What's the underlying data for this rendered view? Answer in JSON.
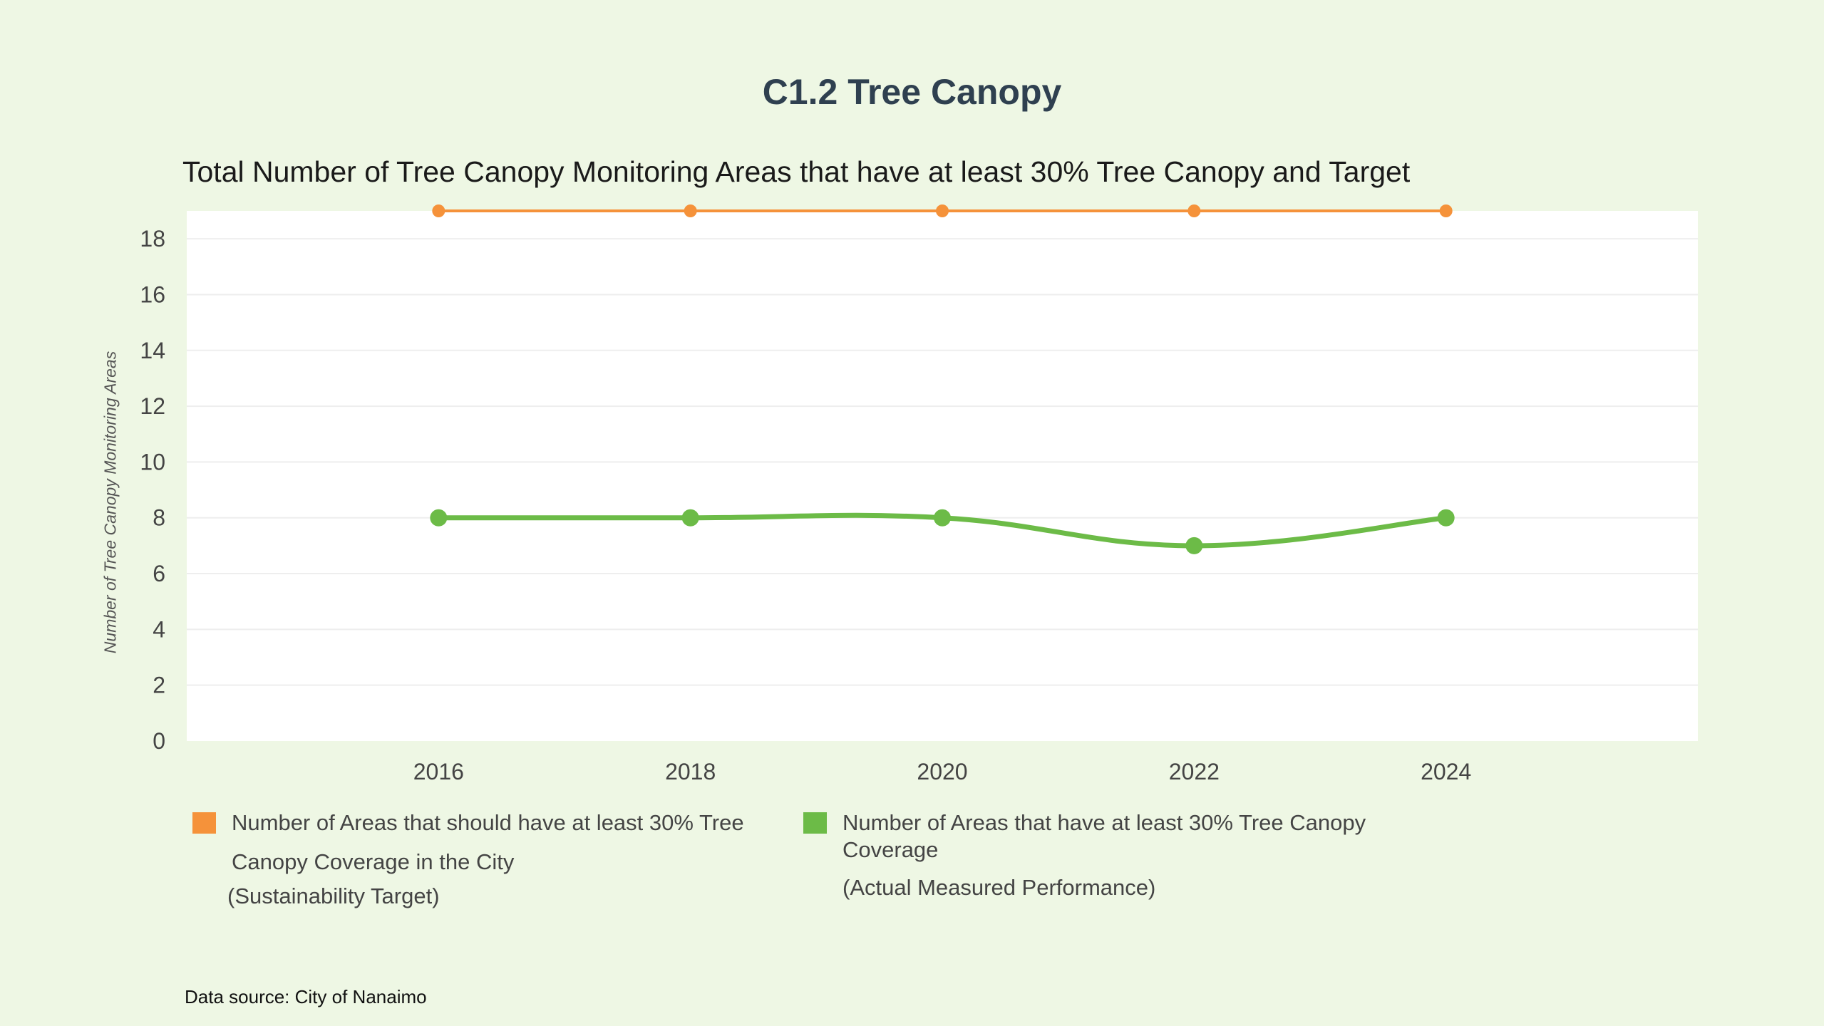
{
  "page": {
    "title": "C1.2 Tree Canopy",
    "data_source": "Data source: City of Nanaimo"
  },
  "chart_data": {
    "type": "line",
    "title": "Total Number of Tree Canopy Monitoring Areas that have at least 30% Tree Canopy and Target",
    "xlabel": "",
    "ylabel": "Number of Tree Canopy Monitoring Areas",
    "x": [
      2016,
      2018,
      2020,
      2022,
      2024
    ],
    "x_tick_labels": [
      "2016",
      "2018",
      "2020",
      "2022",
      "2024"
    ],
    "xlim": [
      2014,
      2026
    ],
    "ylim": [
      0,
      19
    ],
    "y_ticks": [
      0,
      2,
      4,
      6,
      8,
      10,
      12,
      14,
      16,
      18
    ],
    "grid": true,
    "legend_position": "bottom-left",
    "series": [
      {
        "name": "Sustainability Target",
        "legend_lines": [
          "Number of Areas that should have at least 30% Tree",
          "Canopy Coverage in the City",
          "(Sustainability Target)"
        ],
        "values": [
          19,
          19,
          19,
          19,
          19
        ],
        "color": "#f5923a",
        "smooth": false
      },
      {
        "name": "Actual Measured Performance",
        "legend_lines": [
          "Number of Areas that have at least 30% Tree Canopy",
          "Coverage",
          "(Actual Measured Performance)"
        ],
        "values": [
          8,
          8,
          8,
          7,
          8
        ],
        "color": "#6cbb47",
        "smooth": true
      }
    ]
  }
}
